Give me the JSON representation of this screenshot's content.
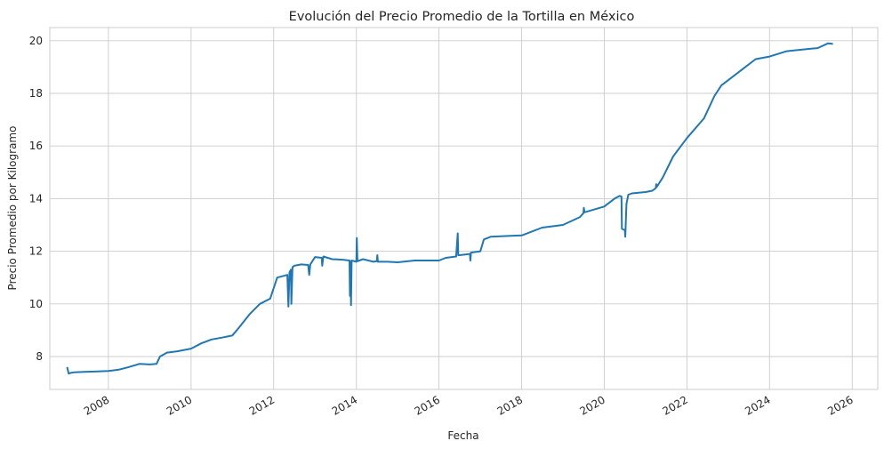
{
  "chart_data": {
    "type": "line",
    "title": "Evolución del Precio Promedio de la Tortilla en México",
    "xlabel": "Fecha",
    "ylabel": "Precio Promedio por Kilogramo",
    "xlim": [
      "2006-08-01",
      "2026-08-15"
    ],
    "ylim": [
      6.75,
      20.5
    ],
    "x_ticks": [
      "2008",
      "2010",
      "2012",
      "2014",
      "2016",
      "2018",
      "2020",
      "2022",
      "2024",
      "2026"
    ],
    "y_ticks": [
      8,
      10,
      12,
      14,
      16,
      18,
      20
    ],
    "grid": true,
    "line_color": "#1f77b4",
    "series": [
      {
        "x": [
          "2007-01-01",
          "2007-01-15",
          "2007-02-01",
          "2007-03-01",
          "2007-06-01",
          "2007-09-01",
          "2008-01-01",
          "2008-04-01",
          "2008-07-01",
          "2008-10-01",
          "2009-01-01",
          "2009-03-01",
          "2009-04-01",
          "2009-06-01",
          "2009-09-01",
          "2010-01-01",
          "2010-04-01",
          "2010-07-01",
          "2010-10-01",
          "2011-01-01",
          "2011-03-01",
          "2011-06-01",
          "2011-09-01",
          "2011-12-01",
          "2012-02-01",
          "2012-05-01",
          "2012-05-10",
          "2012-05-20",
          "2012-06-01",
          "2012-06-05",
          "2012-06-15",
          "2012-07-01",
          "2012-09-01",
          "2012-11-01",
          "2012-11-10",
          "2012-11-20",
          "2013-01-01",
          "2013-03-01",
          "2013-03-05",
          "2013-03-15",
          "2013-06-01",
          "2013-09-01",
          "2013-11-01",
          "2013-11-05",
          "2013-11-10",
          "2013-11-15",
          "2013-11-20",
          "2014-01-01",
          "2014-01-05",
          "2014-01-10",
          "2014-03-01",
          "2014-06-01",
          "2014-07-01",
          "2014-07-05",
          "2014-07-10",
          "2014-10-01",
          "2015-01-01",
          "2015-06-01",
          "2016-01-01",
          "2016-03-01",
          "2016-06-01",
          "2016-06-15",
          "2016-06-20",
          "2016-07-01",
          "2016-10-01",
          "2016-10-05",
          "2016-10-10",
          "2017-01-01",
          "2017-02-01",
          "2017-04-01",
          "2017-09-01",
          "2018-01-01",
          "2018-07-01",
          "2019-01-01",
          "2019-06-01",
          "2019-07-01",
          "2019-07-05",
          "2019-07-10",
          "2020-01-01",
          "2020-04-01",
          "2020-05-15",
          "2020-06-01",
          "2020-06-05",
          "2020-07-01",
          "2020-07-05",
          "2020-07-15",
          "2020-08-01",
          "2020-09-01",
          "2021-01-01",
          "2021-03-01",
          "2021-04-01",
          "2021-04-05",
          "2021-04-10",
          "2021-06-01",
          "2021-09-01",
          "2022-01-01",
          "2022-06-01",
          "2022-09-01",
          "2022-11-01",
          "2023-01-01",
          "2023-06-01",
          "2023-09-01",
          "2024-01-01",
          "2024-06-01",
          "2025-01-01",
          "2025-03-01",
          "2025-06-01",
          "2025-07-15"
        ],
        "y": [
          7.6,
          7.35,
          7.38,
          7.4,
          7.42,
          7.43,
          7.45,
          7.5,
          7.6,
          7.72,
          7.7,
          7.72,
          8.0,
          8.15,
          8.2,
          8.3,
          8.5,
          8.65,
          8.72,
          8.8,
          9.1,
          9.6,
          10.0,
          10.2,
          11.0,
          11.1,
          9.9,
          11.2,
          11.3,
          10.0,
          11.4,
          11.45,
          11.5,
          11.48,
          11.1,
          11.5,
          11.78,
          11.75,
          11.45,
          11.8,
          11.7,
          11.68,
          11.65,
          10.3,
          11.6,
          9.95,
          11.65,
          11.6,
          12.5,
          11.62,
          11.7,
          11.6,
          11.62,
          11.85,
          11.6,
          11.6,
          11.58,
          11.65,
          11.65,
          11.75,
          11.8,
          12.68,
          11.85,
          11.85,
          11.9,
          11.65,
          11.95,
          12.0,
          12.45,
          12.55,
          12.58,
          12.6,
          12.9,
          13.0,
          13.3,
          13.45,
          13.65,
          13.48,
          13.7,
          14.0,
          14.1,
          14.08,
          12.85,
          12.8,
          12.55,
          13.8,
          14.15,
          14.2,
          14.25,
          14.3,
          14.4,
          14.55,
          14.45,
          14.8,
          15.6,
          16.3,
          17.05,
          17.9,
          18.3,
          18.5,
          19.0,
          19.3,
          19.4,
          19.6,
          19.7,
          19.72,
          19.9,
          19.88
        ]
      }
    ]
  }
}
